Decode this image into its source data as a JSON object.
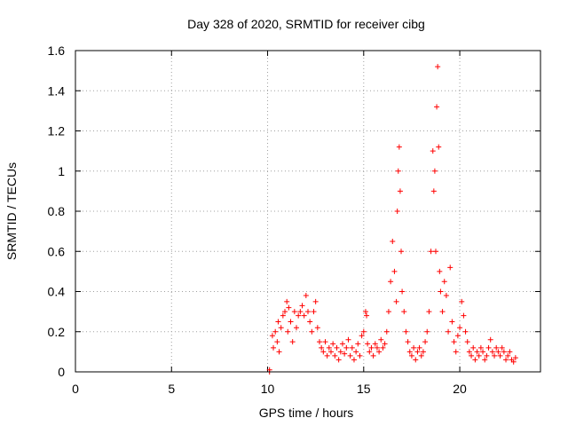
{
  "chart_data": {
    "type": "scatter",
    "title": "Day 328 of 2020, SRMTID for receiver cibg",
    "xlabel": "GPS time / hours",
    "ylabel": "SRMTID / TECUs",
    "xlim": [
      0,
      24.2
    ],
    "ylim": [
      0,
      1.6
    ],
    "xticks": [
      0,
      5,
      10,
      15,
      20
    ],
    "xtick_labels": [
      "0",
      "5",
      "10",
      "15",
      "20"
    ],
    "yticks": [
      0,
      0.2,
      0.4,
      0.6,
      0.8,
      1.0,
      1.2,
      1.4,
      1.6
    ],
    "ytick_labels": [
      "0",
      "0.2",
      "0.4",
      "0.6",
      "0.8",
      "1",
      "1.2",
      "1.4",
      "1.6"
    ],
    "grid": true,
    "marker": "plus",
    "color": "#ff0000",
    "series": [
      {
        "name": "SRMTID",
        "points": [
          [
            10.1,
            0.0
          ],
          [
            10.1,
            0.01
          ],
          [
            10.25,
            0.18
          ],
          [
            10.3,
            0.12
          ],
          [
            10.4,
            0.2
          ],
          [
            10.5,
            0.15
          ],
          [
            10.55,
            0.25
          ],
          [
            10.6,
            0.1
          ],
          [
            10.7,
            0.22
          ],
          [
            10.8,
            0.28
          ],
          [
            10.9,
            0.3
          ],
          [
            11.0,
            0.35
          ],
          [
            11.05,
            0.2
          ],
          [
            11.1,
            0.32
          ],
          [
            11.2,
            0.25
          ],
          [
            11.3,
            0.15
          ],
          [
            11.4,
            0.3
          ],
          [
            11.5,
            0.22
          ],
          [
            11.6,
            0.28
          ],
          [
            11.7,
            0.3
          ],
          [
            11.8,
            0.33
          ],
          [
            11.9,
            0.28
          ],
          [
            12.0,
            0.38
          ],
          [
            12.1,
            0.3
          ],
          [
            12.2,
            0.25
          ],
          [
            12.3,
            0.2
          ],
          [
            12.4,
            0.3
          ],
          [
            12.5,
            0.35
          ],
          [
            12.6,
            0.22
          ],
          [
            12.7,
            0.15
          ],
          [
            12.8,
            0.12
          ],
          [
            12.9,
            0.1
          ],
          [
            13.0,
            0.15
          ],
          [
            13.1,
            0.08
          ],
          [
            13.2,
            0.12
          ],
          [
            13.3,
            0.1
          ],
          [
            13.4,
            0.14
          ],
          [
            13.5,
            0.08
          ],
          [
            13.6,
            0.12
          ],
          [
            13.7,
            0.06
          ],
          [
            13.8,
            0.1
          ],
          [
            13.9,
            0.14
          ],
          [
            14.0,
            0.09
          ],
          [
            14.1,
            0.12
          ],
          [
            14.2,
            0.16
          ],
          [
            14.3,
            0.08
          ],
          [
            14.4,
            0.12
          ],
          [
            14.5,
            0.06
          ],
          [
            14.6,
            0.1
          ],
          [
            14.7,
            0.14
          ],
          [
            14.8,
            0.08
          ],
          [
            14.9,
            0.18
          ],
          [
            15.0,
            0.2
          ],
          [
            15.1,
            0.3
          ],
          [
            15.15,
            0.28
          ],
          [
            15.2,
            0.14
          ],
          [
            15.3,
            0.1
          ],
          [
            15.4,
            0.12
          ],
          [
            15.5,
            0.08
          ],
          [
            15.6,
            0.14
          ],
          [
            15.7,
            0.12
          ],
          [
            15.8,
            0.1
          ],
          [
            15.9,
            0.16
          ],
          [
            16.0,
            0.12
          ],
          [
            16.1,
            0.14
          ],
          [
            16.2,
            0.2
          ],
          [
            16.3,
            0.3
          ],
          [
            16.4,
            0.45
          ],
          [
            16.5,
            0.65
          ],
          [
            16.6,
            0.5
          ],
          [
            16.7,
            0.35
          ],
          [
            16.75,
            0.8
          ],
          [
            16.8,
            1.0
          ],
          [
            16.85,
            1.12
          ],
          [
            16.9,
            0.9
          ],
          [
            16.95,
            0.6
          ],
          [
            17.0,
            0.4
          ],
          [
            17.1,
            0.3
          ],
          [
            17.2,
            0.2
          ],
          [
            17.3,
            0.15
          ],
          [
            17.4,
            0.1
          ],
          [
            17.5,
            0.08
          ],
          [
            17.6,
            0.12
          ],
          [
            17.7,
            0.06
          ],
          [
            17.8,
            0.1
          ],
          [
            17.9,
            0.12
          ],
          [
            18.0,
            0.08
          ],
          [
            18.1,
            0.1
          ],
          [
            18.2,
            0.15
          ],
          [
            18.3,
            0.2
          ],
          [
            18.4,
            0.3
          ],
          [
            18.5,
            0.6
          ],
          [
            18.6,
            1.1
          ],
          [
            18.65,
            0.9
          ],
          [
            18.7,
            1.0
          ],
          [
            18.75,
            0.6
          ],
          [
            18.8,
            1.32
          ],
          [
            18.85,
            1.52
          ],
          [
            18.9,
            1.12
          ],
          [
            18.95,
            0.5
          ],
          [
            19.0,
            0.4
          ],
          [
            19.1,
            0.3
          ],
          [
            19.2,
            0.45
          ],
          [
            19.3,
            0.38
          ],
          [
            19.4,
            0.2
          ],
          [
            19.5,
            0.52
          ],
          [
            19.6,
            0.25
          ],
          [
            19.7,
            0.15
          ],
          [
            19.8,
            0.1
          ],
          [
            19.9,
            0.18
          ],
          [
            20.0,
            0.22
          ],
          [
            20.1,
            0.35
          ],
          [
            20.2,
            0.28
          ],
          [
            20.3,
            0.2
          ],
          [
            20.4,
            0.15
          ],
          [
            20.5,
            0.1
          ],
          [
            20.6,
            0.08
          ],
          [
            20.7,
            0.12
          ],
          [
            20.8,
            0.06
          ],
          [
            20.9,
            0.1
          ],
          [
            21.0,
            0.08
          ],
          [
            21.1,
            0.12
          ],
          [
            21.2,
            0.1
          ],
          [
            21.3,
            0.06
          ],
          [
            21.4,
            0.08
          ],
          [
            21.5,
            0.12
          ],
          [
            21.6,
            0.16
          ],
          [
            21.7,
            0.1
          ],
          [
            21.8,
            0.08
          ],
          [
            21.9,
            0.12
          ],
          [
            22.0,
            0.1
          ],
          [
            22.1,
            0.08
          ],
          [
            22.2,
            0.12
          ],
          [
            22.3,
            0.1
          ],
          [
            22.4,
            0.06
          ],
          [
            22.5,
            0.08
          ],
          [
            22.6,
            0.1
          ],
          [
            22.7,
            0.06
          ],
          [
            22.8,
            0.05
          ],
          [
            22.9,
            0.07
          ]
        ]
      }
    ]
  }
}
